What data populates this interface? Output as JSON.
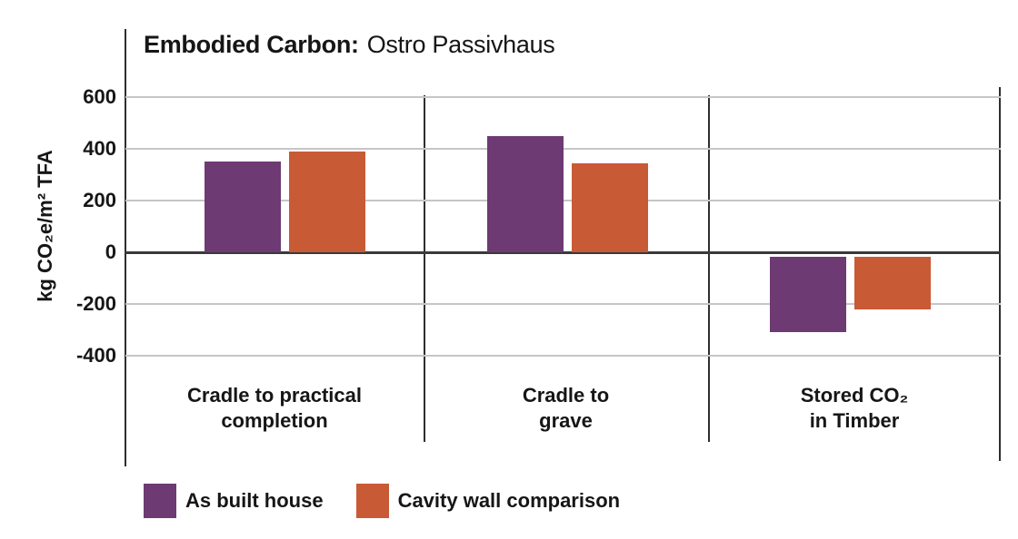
{
  "title": {
    "bold": "Embodied Carbon:",
    "regular": "Ostro Passivhaus"
  },
  "colors": {
    "as_built": "#6e3a73",
    "cavity_wall": "#c85a36",
    "axis_line": "#2e2e2e",
    "zero_line": "#3a3a3a",
    "gridline": "#c6c6c6",
    "text": "#161616",
    "background": "#ffffff"
  },
  "chart_data": {
    "type": "bar",
    "title": "Embodied Carbon: Ostro Passivhaus",
    "ylabel": "kg CO₂e/m² TFA",
    "xlabel": "",
    "categories": [
      "Cradle to practical\ncompletion",
      "Cradle to\ngrave",
      "Stored CO₂\nin Timber"
    ],
    "series": [
      {
        "name": "As built house",
        "color": "#6e3a73",
        "values": [
          350,
          450,
          -310
        ]
      },
      {
        "name": "Cavity wall comparison",
        "color": "#c85a36",
        "values": [
          390,
          345,
          -220
        ]
      }
    ],
    "yticks": [
      600,
      400,
      200,
      0,
      -200,
      -400
    ],
    "ylim": [
      -400,
      600
    ],
    "grid": "horizontal",
    "zero_line_emphasized": true,
    "negative_bars_gap_below_zero": true,
    "legend_position": "bottom-left"
  }
}
